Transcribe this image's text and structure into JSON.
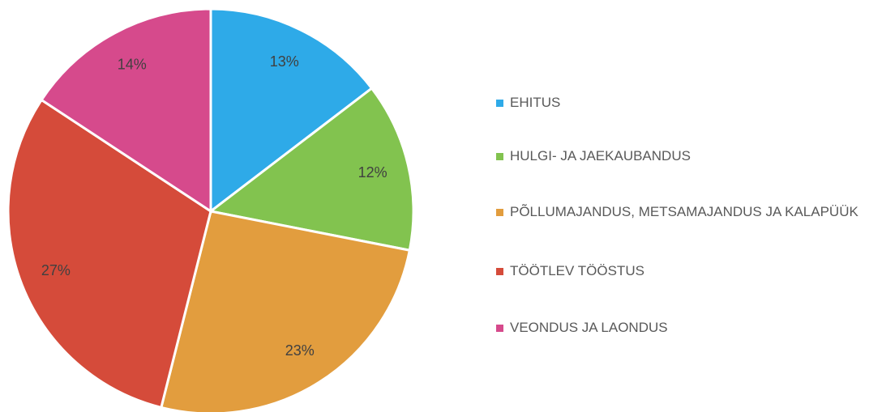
{
  "chart_data": {
    "type": "pie",
    "categories": [
      "EHITUS",
      "HULGI- JA JAEKAUBANDUS",
      "PÕLLUMAJANDUS, METSAMAJANDUS JA KALAPÜÜK",
      "TÖÖTLEV TÖÖSTUS",
      "VEONDUS JA LAONDUS"
    ],
    "values": [
      13,
      12,
      23,
      27,
      14
    ],
    "value_labels": [
      "13%",
      "12%",
      "23%",
      "27%",
      "14%"
    ],
    "colors": [
      "#2eaae8",
      "#82c34f",
      "#e29d3e",
      "#d54b3a",
      "#d64a8c"
    ],
    "legend": "right"
  }
}
